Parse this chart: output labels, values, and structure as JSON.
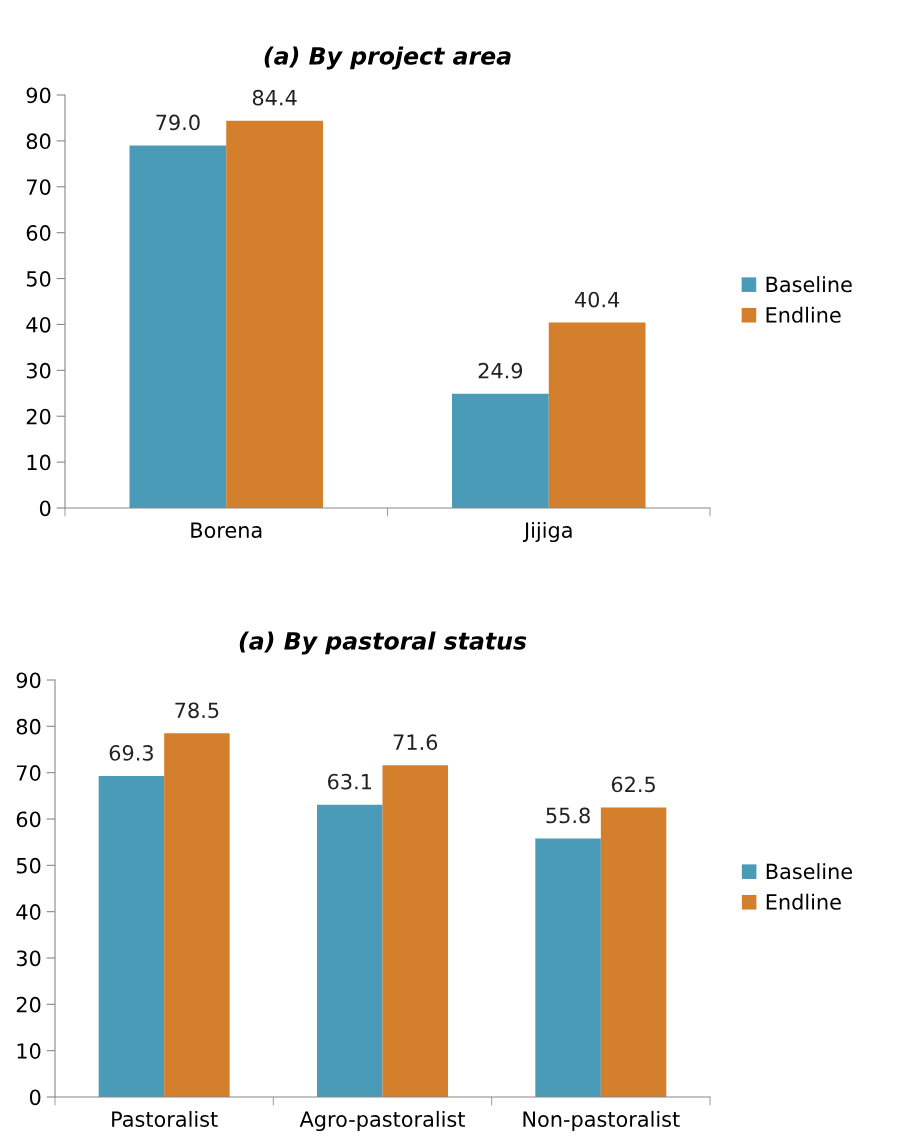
{
  "chart_data": [
    {
      "type": "bar",
      "title": "(a) By project area",
      "categories": [
        "Borena",
        "Jijiga"
      ],
      "series": [
        {
          "name": "Baseline",
          "color": "#4a9bb8",
          "values": [
            79.0,
            24.9
          ],
          "value_labels": [
            "79.0",
            "24.9"
          ]
        },
        {
          "name": "Endline",
          "color": "#d47f2c",
          "values": [
            84.4,
            40.4
          ],
          "value_labels": [
            "84.4",
            "40.4"
          ]
        }
      ],
      "ylim": [
        0,
        90
      ],
      "yticks": [
        0,
        10,
        20,
        30,
        40,
        50,
        60,
        70,
        80,
        90
      ],
      "legend": "right",
      "grid": false
    },
    {
      "type": "bar",
      "title": "(a) By pastoral status",
      "categories": [
        "Pastoralist",
        "Agro-pastoralist",
        "Non-pastoralist"
      ],
      "series": [
        {
          "name": "Baseline",
          "color": "#4a9bb8",
          "values": [
            69.3,
            63.1,
            55.8
          ],
          "value_labels": [
            "69.3",
            "63.1",
            "55.8"
          ]
        },
        {
          "name": "Endline",
          "color": "#d47f2c",
          "values": [
            78.5,
            71.6,
            62.5
          ],
          "value_labels": [
            "78.5",
            "71.6",
            "62.5"
          ]
        }
      ],
      "ylim": [
        0,
        90
      ],
      "yticks": [
        0,
        10,
        20,
        30,
        40,
        50,
        60,
        70,
        80,
        90
      ],
      "legend": "right",
      "grid": false
    }
  ]
}
